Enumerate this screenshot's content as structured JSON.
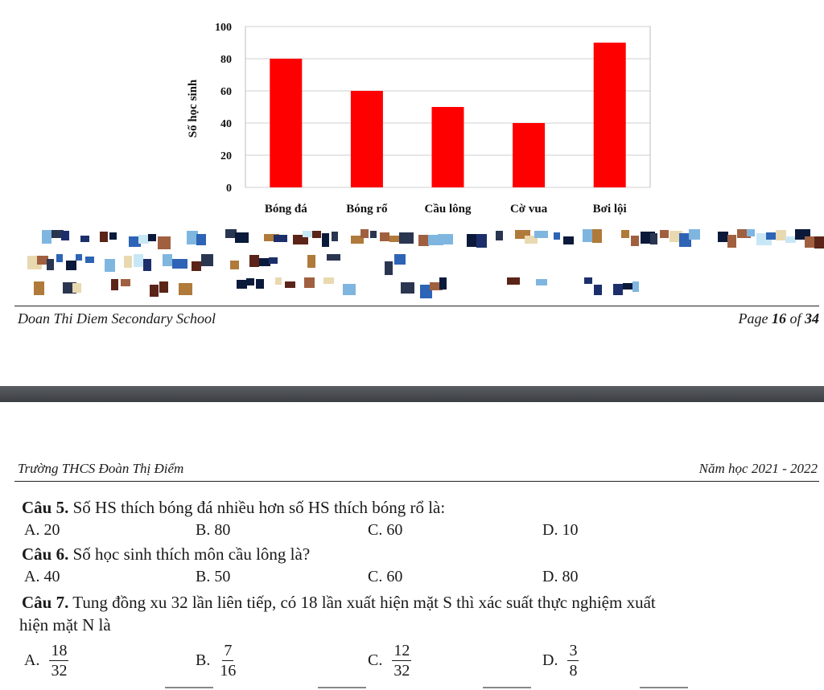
{
  "chart_data": {
    "type": "bar",
    "categories": [
      "Bóng đá",
      "Bóng rổ",
      "Cầu lông",
      "Cờ vua",
      "Bơi lội"
    ],
    "values": [
      80,
      60,
      50,
      40,
      90
    ],
    "ylabel": "Số học sinh",
    "xlabel": "",
    "ylim": [
      0,
      100
    ],
    "yticks": [
      0,
      20,
      40,
      60,
      80,
      100
    ],
    "grid": true,
    "bar_color": "#ff0000"
  },
  "footer": {
    "school": "Doan Thi Diem Secondary School",
    "page_prefix": "Page",
    "page_current": "16",
    "page_of": "of",
    "page_total": "34"
  },
  "header": {
    "school": "Trường THCS Đoàn Thị Điểm",
    "year": "Năm học 2021 - 2022"
  },
  "questions": [
    {
      "label": "Câu 5.",
      "text": "Số HS thích bóng đá nhiều hơn số HS thích bóng rổ là:",
      "options": [
        {
          "letter": "A.",
          "value": "20"
        },
        {
          "letter": "B.",
          "value": "80"
        },
        {
          "letter": "C.",
          "value": "60"
        },
        {
          "letter": "D.",
          "value": "10"
        }
      ]
    },
    {
      "label": "Câu 6.",
      "text": "Số học sinh thích môn cầu lông là?",
      "options": [
        {
          "letter": "A.",
          "value": "40"
        },
        {
          "letter": "B.",
          "value": "50"
        },
        {
          "letter": "C.",
          "value": "60"
        },
        {
          "letter": "D.",
          "value": "80"
        }
      ]
    },
    {
      "label": "Câu 7.",
      "text": "Tung đồng xu 32 lần liên tiếp, có 18 lần xuất hiện mặt S thì xác suất thực nghiệm xuất",
      "text2": "hiện mặt N là",
      "options": [
        {
          "letter": "A.",
          "num": "18",
          "den": "32"
        },
        {
          "letter": "B.",
          "num": "7",
          "den": "16"
        },
        {
          "letter": "C.",
          "num": "12",
          "den": "32"
        },
        {
          "letter": "D.",
          "num": "3",
          "den": "8"
        }
      ]
    }
  ],
  "colors": {
    "pixel_palette": [
      "#0b1a3a",
      "#1c2f6b",
      "#2d64b5",
      "#7fb6e0",
      "#c8e7f5",
      "#e9d9b0",
      "#b07a3a",
      "#5a2418",
      "#a06040",
      "#2a3550"
    ]
  }
}
